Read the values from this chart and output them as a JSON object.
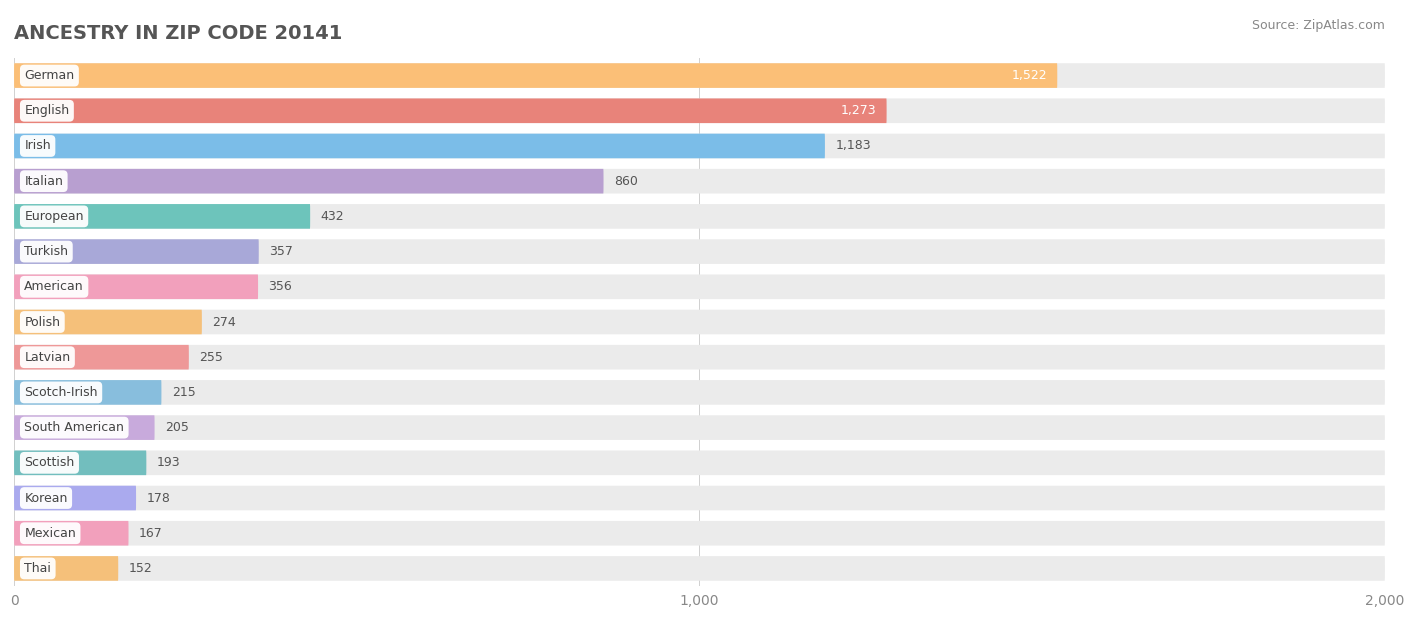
{
  "title": "ANCESTRY IN ZIP CODE 20141",
  "source": "Source: ZipAtlas.com",
  "categories": [
    "German",
    "English",
    "Irish",
    "Italian",
    "European",
    "Turkish",
    "American",
    "Polish",
    "Latvian",
    "Scotch-Irish",
    "South American",
    "Scottish",
    "Korean",
    "Mexican",
    "Thai"
  ],
  "values": [
    1522,
    1273,
    1183,
    860,
    432,
    357,
    356,
    274,
    255,
    215,
    205,
    193,
    178,
    167,
    152
  ],
  "colors": [
    "#FBBF77",
    "#E8837A",
    "#7BBDE8",
    "#B89FD0",
    "#6DC4BB",
    "#A8A8D8",
    "#F2A0BC",
    "#F5C07A",
    "#EE9898",
    "#88BEDD",
    "#C8AADC",
    "#72BEBE",
    "#AAAAEE",
    "#F2A0BC",
    "#F5C07A"
  ],
  "bar_bg_color": "#EBEBEB",
  "xlim": [
    0,
    2000
  ],
  "xticks": [
    0,
    1000,
    2000
  ],
  "fig_bg_color": "#FFFFFF",
  "title_color": "#555555",
  "source_color": "#888888",
  "value_label_threshold": 1200
}
